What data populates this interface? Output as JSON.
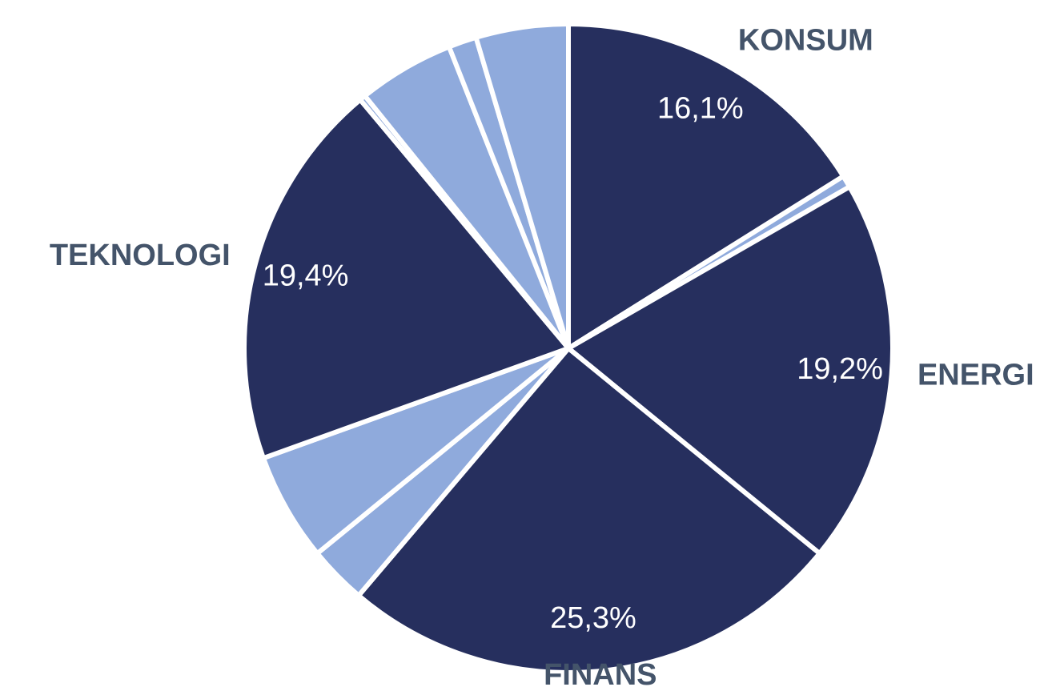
{
  "chart_data": {
    "type": "pie",
    "categories": [
      "KONSUM",
      null,
      "ENERGI",
      "FINANS",
      null,
      null,
      "TEKNOLOGI",
      null,
      null,
      null,
      null
    ],
    "values": [
      16.1,
      0.6,
      19.2,
      25.3,
      2.9,
      5.4,
      19.4,
      0.3,
      4.8,
      1.4,
      4.6
    ],
    "value_labels": [
      "16,1%",
      null,
      "19,2%",
      "25,3%",
      null,
      null,
      "19,4%",
      null,
      null,
      null,
      null
    ],
    "colors": [
      "#262f5e",
      "#8faadc",
      "#262f5e",
      "#262f5e",
      "#8faadc",
      "#8faadc",
      "#262f5e",
      "#8faadc",
      "#8faadc",
      "#8faadc",
      "#8faadc"
    ]
  }
}
